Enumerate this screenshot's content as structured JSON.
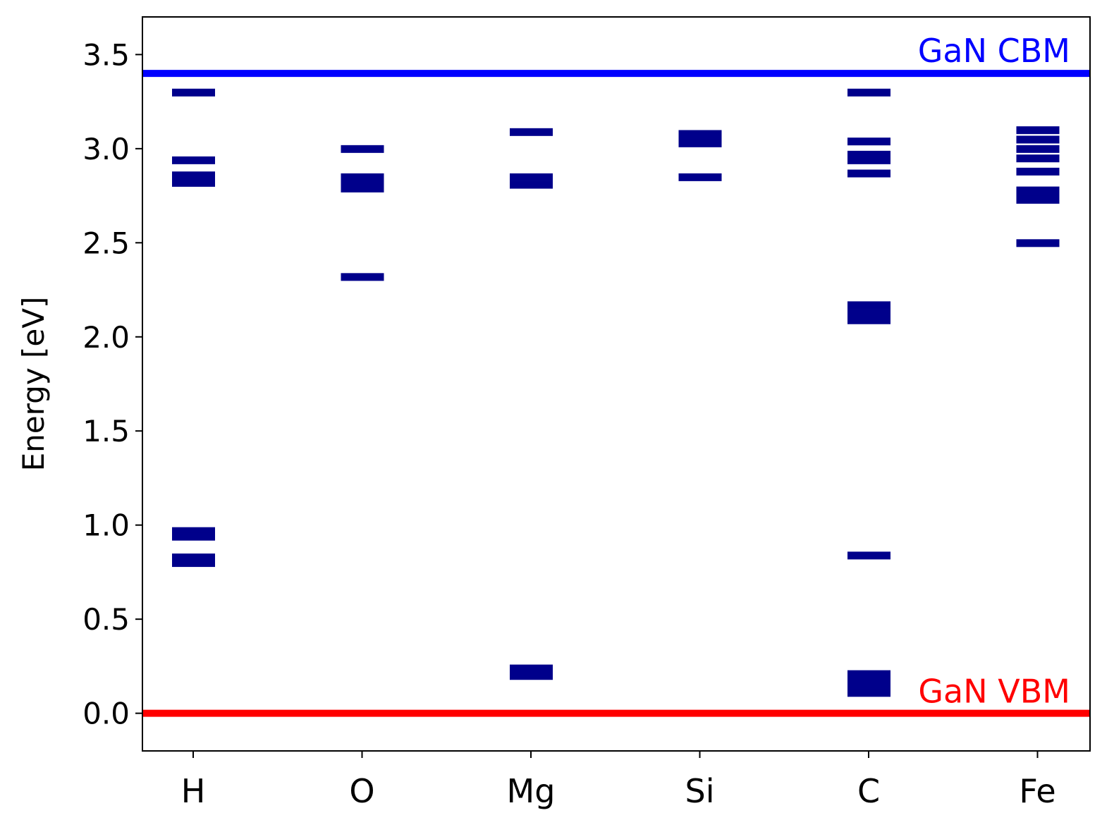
{
  "chart_data": {
    "type": "energy-level diagram",
    "xlabel": "",
    "ylabel": "Energy [eV]",
    "ylim": [
      -0.2,
      3.7
    ],
    "yticks": [
      "0.0",
      "0.5",
      "1.0",
      "1.5",
      "2.0",
      "2.5",
      "3.0",
      "3.5"
    ],
    "categories": [
      "H",
      "O",
      "Mg",
      "Si",
      "C",
      "Fe"
    ],
    "grid": false,
    "level_color": "#00008b",
    "levels": {
      "H": [
        3.3,
        2.94,
        2.86,
        2.82,
        0.97,
        0.94,
        0.83,
        0.8
      ],
      "O": [
        3.0,
        2.85,
        2.82,
        2.79,
        2.32
      ],
      "Mg": [
        3.09,
        2.85,
        2.81,
        0.24,
        0.2
      ],
      "Si": [
        3.08,
        3.05,
        3.03,
        2.85
      ],
      "C": [
        3.3,
        3.04,
        2.97,
        2.94,
        2.87,
        2.17,
        2.13,
        2.09,
        0.84,
        0.21,
        0.18,
        0.15,
        0.12,
        0.11
      ],
      "Fe": [
        3.1,
        3.05,
        3.0,
        2.95,
        2.88,
        2.78,
        2.76,
        2.73,
        2.5
      ]
    },
    "reference_lines": [
      {
        "name": "GaN CBM",
        "value": 3.4,
        "color": "#0000ff"
      },
      {
        "name": "GaN VBM",
        "value": 0.0,
        "color": "#ff0000"
      }
    ]
  }
}
